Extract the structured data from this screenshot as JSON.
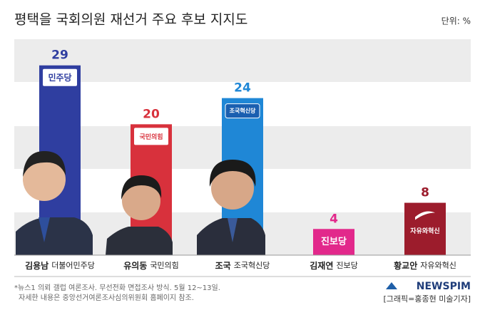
{
  "title": "평택을 국회의원 재선거 주요 후보 지지도",
  "unit": "단위: %",
  "chart_data": {
    "type": "bar",
    "categories": [
      "김용남",
      "유의동",
      "조국",
      "김재연",
      "황교안"
    ],
    "parties": [
      "더불어민주당",
      "국민의힘",
      "조국혁신당",
      "진보당",
      "자유와혁신"
    ],
    "logos": [
      "민주당",
      "국민의힘",
      "조국혁신당",
      "진보당",
      "자유와혁신"
    ],
    "values": [
      29,
      20,
      24,
      4,
      8
    ],
    "colors": [
      "#2f3ea0",
      "#d8313c",
      "#1f87d6",
      "#e2288b",
      "#9c1c2c"
    ],
    "ylim": [
      0,
      33
    ]
  },
  "footnote": [
    "*뉴스1 의뢰 갤럽 여론조사. 무선전화 면접조사 방식. 5월 12~13일.",
    "자세한 내용은 중앙선거여론조사심의위원회 홈페이지 참조."
  ],
  "brand": "NEWSPIM",
  "credit": "[그래픽=홍종현 미술기자]"
}
